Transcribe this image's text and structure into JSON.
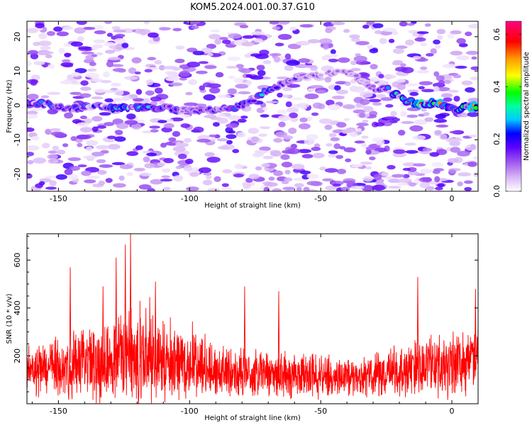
{
  "title": "KOM5.2024.001.00.37.G10",
  "chart_data": [
    {
      "type": "heatmap",
      "xlabel": "Height of straight line (km)",
      "ylabel": "Frequency (Hz)",
      "xlim": [
        -162,
        10
      ],
      "ylim": [
        -25,
        24.5
      ],
      "x_ticks": [
        -150,
        -100,
        -50,
        0
      ],
      "y_ticks": [
        -20,
        -10,
        0,
        10,
        20
      ],
      "colorbar": {
        "label": "Normalized spectral amplitude",
        "range": [
          0,
          0.65
        ],
        "ticks": [
          0.0,
          0.2,
          0.4,
          0.6
        ],
        "colors": [
          "#ffffff",
          "#d9b8f5",
          "#9a4ff0",
          "#5b00ff",
          "#0000ff",
          "#00c8ff",
          "#00ffa0",
          "#00ff00",
          "#ffff00",
          "#ff9900",
          "#ff0000",
          "#ff0080"
        ]
      },
      "ridge": [
        {
          "x": -162,
          "f": 0.5,
          "a": 0.3
        },
        {
          "x": -155,
          "f": 0.5,
          "a": 0.28
        },
        {
          "x": -145,
          "f": -1.0,
          "a": 0.25
        },
        {
          "x": -135,
          "f": 0.0,
          "a": 0.3
        },
        {
          "x": -125,
          "f": -1.0,
          "a": 0.42
        },
        {
          "x": -115,
          "f": -0.5,
          "a": 0.3
        },
        {
          "x": -105,
          "f": -1.0,
          "a": 0.2
        },
        {
          "x": -95,
          "f": -1.5,
          "a": 0.18
        },
        {
          "x": -85,
          "f": -1.0,
          "a": 0.25
        },
        {
          "x": -78,
          "f": 0.5,
          "a": 0.3
        },
        {
          "x": -72,
          "f": 3.5,
          "a": 0.3
        },
        {
          "x": -66,
          "f": 6.0,
          "a": 0.25
        },
        {
          "x": -60,
          "f": 8.0,
          "a": 0.2
        },
        {
          "x": -50,
          "f": 9.0,
          "a": 0.12
        },
        {
          "x": -40,
          "f": 10.0,
          "a": 0.12
        },
        {
          "x": -30,
          "f": 5.0,
          "a": 0.12
        },
        {
          "x": -24,
          "f": 4.5,
          "a": 0.3
        },
        {
          "x": -18,
          "f": 1.5,
          "a": 0.38
        },
        {
          "x": -12,
          "f": 0.5,
          "a": 0.58
        },
        {
          "x": -6,
          "f": 0.5,
          "a": 0.55
        },
        {
          "x": -2,
          "f": -0.5,
          "a": 0.45
        },
        {
          "x": 2,
          "f": -1.5,
          "a": 0.3
        },
        {
          "x": 6,
          "f": -0.5,
          "a": 0.6
        },
        {
          "x": 8,
          "f": -0.5,
          "a": 0.62
        }
      ]
    },
    {
      "type": "line",
      "xlabel": "Height of straight line (km)",
      "ylabel": "SNR (10 * v/v)",
      "xlim": [
        -162,
        10
      ],
      "ylim": [
        0,
        710
      ],
      "x_ticks": [
        -150,
        -100,
        -50,
        0
      ],
      "y_ticks": [
        200,
        400,
        600
      ],
      "color": "#ff0000",
      "envelope": [
        {
          "x": -162,
          "base": 140,
          "amp": 110
        },
        {
          "x": -150,
          "base": 150,
          "amp": 140
        },
        {
          "x": -140,
          "base": 160,
          "amp": 170
        },
        {
          "x": -130,
          "base": 185,
          "amp": 220
        },
        {
          "x": -122,
          "base": 200,
          "amp": 260
        },
        {
          "x": -112,
          "base": 175,
          "amp": 200
        },
        {
          "x": -100,
          "base": 150,
          "amp": 150
        },
        {
          "x": -90,
          "base": 135,
          "amp": 130
        },
        {
          "x": -75,
          "base": 125,
          "amp": 120
        },
        {
          "x": -60,
          "base": 120,
          "amp": 110
        },
        {
          "x": -45,
          "base": 110,
          "amp": 100
        },
        {
          "x": -30,
          "base": 115,
          "amp": 105
        },
        {
          "x": -20,
          "base": 135,
          "amp": 130
        },
        {
          "x": -10,
          "base": 160,
          "amp": 150
        },
        {
          "x": 0,
          "base": 170,
          "amp": 160
        },
        {
          "x": 10,
          "base": 185,
          "amp": 170
        }
      ],
      "peaks": [
        {
          "x": -145.5,
          "y": 570
        },
        {
          "x": -133,
          "y": 490
        },
        {
          "x": -128,
          "y": 610
        },
        {
          "x": -124.5,
          "y": 665
        },
        {
          "x": -122.5,
          "y": 710
        },
        {
          "x": -113,
          "y": 510
        },
        {
          "x": -79,
          "y": 490
        },
        {
          "x": -66,
          "y": 470
        },
        {
          "x": -13,
          "y": 530
        },
        {
          "x": 9,
          "y": 480
        }
      ]
    }
  ]
}
